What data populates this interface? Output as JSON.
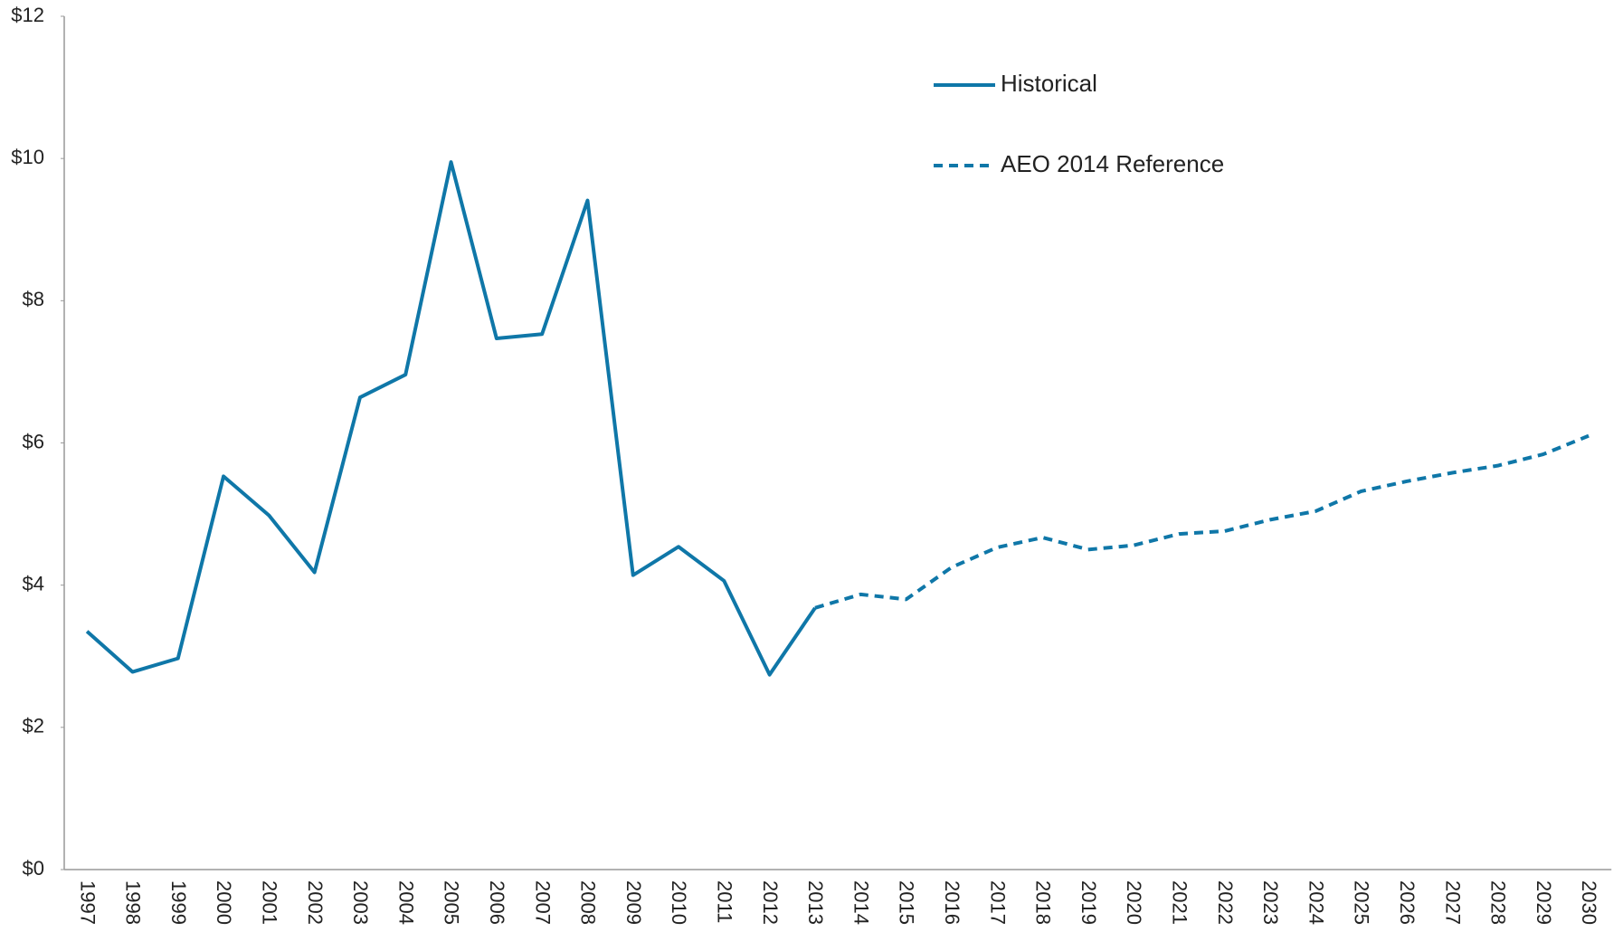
{
  "chart_data": {
    "type": "line",
    "categories": [
      "1997",
      "1998",
      "1999",
      "2000",
      "2001",
      "2002",
      "2003",
      "2004",
      "2005",
      "2006",
      "2007",
      "2008",
      "2009",
      "2010",
      "2011",
      "2012",
      "2013",
      "2014",
      "2015",
      "2016",
      "2017",
      "2018",
      "2019",
      "2020",
      "2021",
      "2022",
      "2023",
      "2024",
      "2025",
      "2026",
      "2027",
      "2028",
      "2029",
      "2030"
    ],
    "series": [
      {
        "name": "Historical",
        "color": "#0f77a8",
        "dash": false,
        "values": [
          3.35,
          2.78,
          2.97,
          5.53,
          4.98,
          4.18,
          6.64,
          6.96,
          9.95,
          7.47,
          7.53,
          9.41,
          4.14,
          4.54,
          4.06,
          2.74,
          3.68,
          null,
          null,
          null,
          null,
          null,
          null,
          null,
          null,
          null,
          null,
          null,
          null,
          null,
          null,
          null,
          null,
          null
        ]
      },
      {
        "name": "AEO 2014 Reference",
        "color": "#0f77a8",
        "dash": true,
        "values": [
          null,
          null,
          null,
          null,
          null,
          null,
          null,
          null,
          null,
          null,
          null,
          null,
          null,
          null,
          null,
          null,
          3.68,
          3.87,
          3.8,
          4.25,
          4.53,
          4.67,
          4.5,
          4.56,
          4.72,
          4.76,
          4.92,
          5.04,
          5.32,
          5.46,
          5.58,
          5.68,
          5.84,
          6.1
        ]
      }
    ],
    "ylim": [
      0,
      12
    ],
    "yticks": [
      {
        "value": 0,
        "label": "$0"
      },
      {
        "value": 2,
        "label": "$2"
      },
      {
        "value": 4,
        "label": "$4"
      },
      {
        "value": 6,
        "label": "$6"
      },
      {
        "value": 8,
        "label": "$8"
      },
      {
        "value": 10,
        "label": "$10"
      },
      {
        "value": 12,
        "label": "$12"
      }
    ],
    "grid": false,
    "legend": "top-right"
  }
}
